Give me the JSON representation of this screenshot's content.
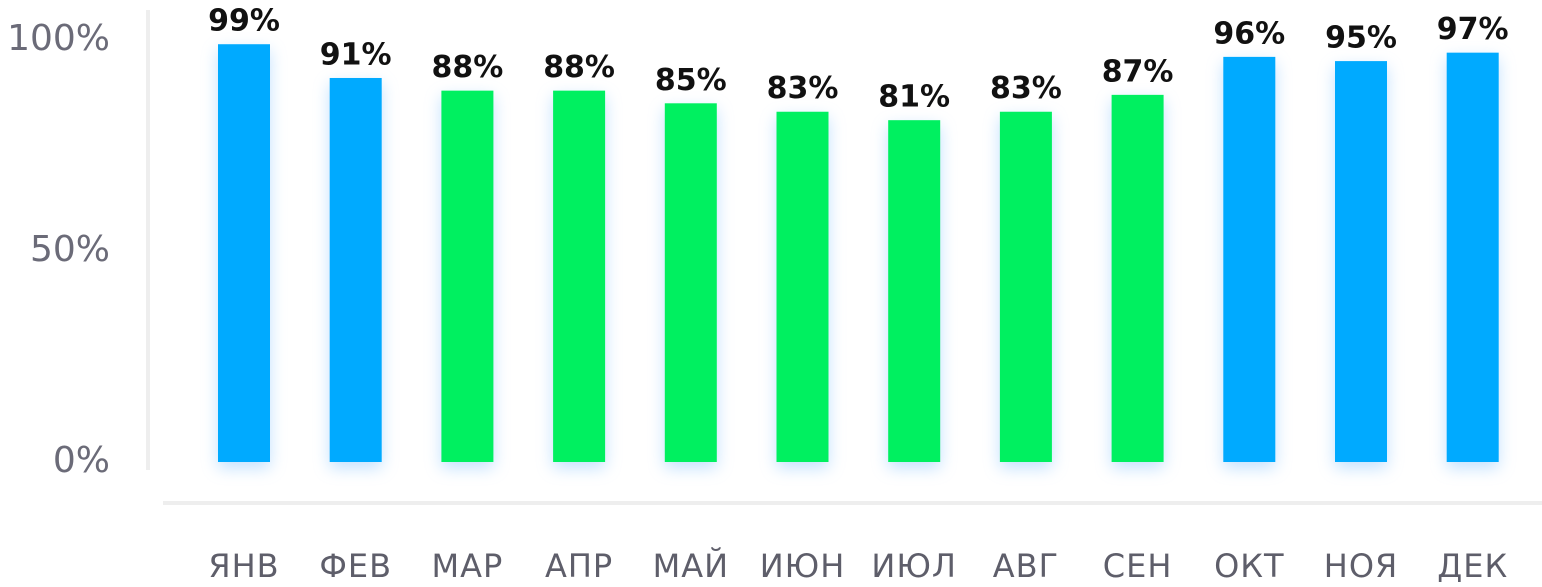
{
  "chart_data": {
    "type": "bar",
    "categories": [
      "ЯНВ",
      "ФЕВ",
      "МАР",
      "АПР",
      "МАЙ",
      "ИЮН",
      "ИЮЛ",
      "АВГ",
      "СЕН",
      "ОКТ",
      "НОЯ",
      "ДЕК"
    ],
    "values": [
      99,
      91,
      88,
      88,
      85,
      83,
      81,
      83,
      87,
      96,
      95,
      97
    ],
    "value_labels": [
      "99%",
      "91%",
      "88%",
      "88%",
      "85%",
      "83%",
      "81%",
      "83%",
      "87%",
      "96%",
      "95%",
      "97%"
    ],
    "colors": [
      "#00aaff",
      "#00aaff",
      "#00f060",
      "#00f060",
      "#00f060",
      "#00f060",
      "#00f060",
      "#00f060",
      "#00f060",
      "#00aaff",
      "#00aaff",
      "#00aaff"
    ],
    "ylim": [
      0,
      100
    ],
    "yticks": [
      {
        "value": 0,
        "label": "0%"
      },
      {
        "value": 50,
        "label": "50%"
      },
      {
        "value": 100,
        "label": "100%"
      }
    ]
  }
}
